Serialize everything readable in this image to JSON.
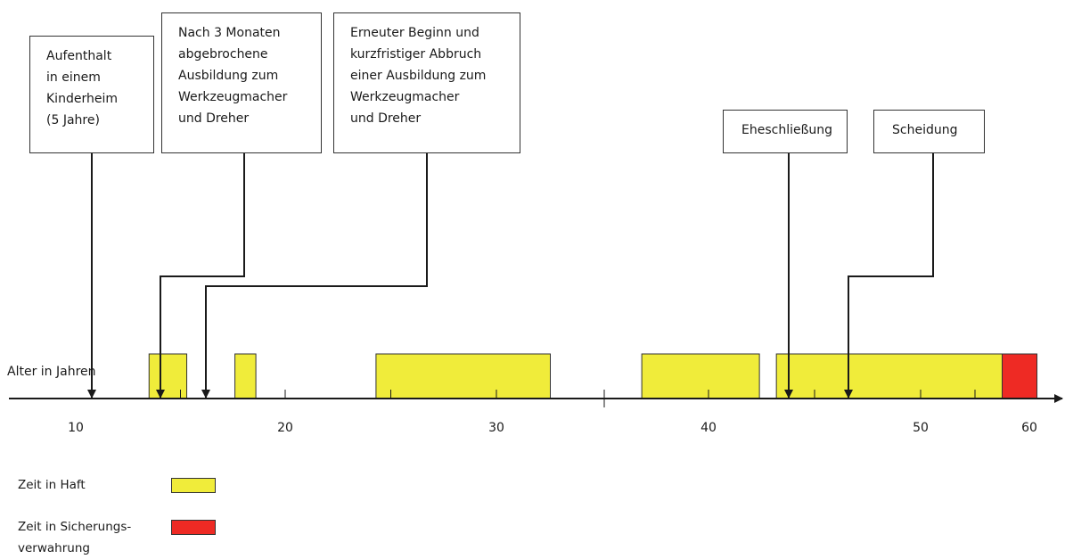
{
  "axis": {
    "label": "Alter in Jahren",
    "ticks": [
      10,
      20,
      30,
      40,
      50,
      60
    ]
  },
  "periods": [
    {
      "type": "haft",
      "start": 13.5,
      "end": 15.3
    },
    {
      "type": "haft",
      "start": 17.6,
      "end": 18.6
    },
    {
      "type": "haft",
      "start": 24.3,
      "end": 32.5
    },
    {
      "type": "haft",
      "start": 36.8,
      "end": 42.4
    },
    {
      "type": "haft",
      "start": 43.2,
      "end": 57.5
    },
    {
      "type": "sicherung",
      "start": 57.5,
      "end": 60.7
    }
  ],
  "events": [
    {
      "id": "kinderheim",
      "text": "Aufenthalt\nin einem\nKinderheim\n(5 Jahre)",
      "age": 11.0
    },
    {
      "id": "ausbildung-1",
      "text": "Nach 3 Monaten\nabgebrochene\nAusbildung zum\nWerkzeugmacher\nund Dreher",
      "age": 14.0
    },
    {
      "id": "ausbildung-2",
      "text": "Erneuter Beginn und\nkurzfristiger Abbruch\neiner Ausbildung zum\nWerkzeugmacher\nund Dreher",
      "age": 16.2
    },
    {
      "id": "eheschliessung",
      "text": "Eheschließung",
      "age": 43.8
    },
    {
      "id": "scheidung",
      "text": "Scheidung",
      "age": 46.6
    }
  ],
  "legend": [
    {
      "label": "Zeit in Haft",
      "color": "#f0ec3a"
    },
    {
      "label": "Zeit in Sicherungs-\nverwahrung",
      "color": "#ee2a24"
    }
  ],
  "colors": {
    "haft": "#f0ec3a",
    "sicherung": "#ee2a24",
    "line": "#1a1a1a"
  }
}
